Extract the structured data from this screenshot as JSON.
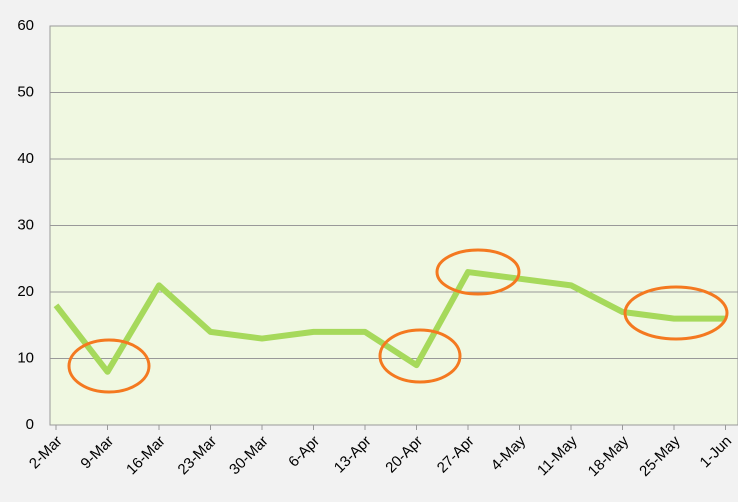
{
  "chart_data": {
    "type": "line",
    "categories": [
      "2-Mar",
      "9-Mar",
      "16-Mar",
      "23-Mar",
      "30-Mar",
      "6-Apr",
      "13-Apr",
      "20-Apr",
      "27-Apr",
      "4-May",
      "11-May",
      "18-May",
      "25-May",
      "1-Jun"
    ],
    "series": [
      {
        "color": "#a6d95b",
        "values": [
          18,
          8,
          21,
          14,
          13,
          14,
          14,
          9,
          23,
          22,
          21,
          17,
          16,
          16
        ]
      }
    ],
    "ylim": [
      0,
      60
    ],
    "yticks": [
      0,
      10,
      20,
      30,
      40,
      50,
      60
    ],
    "grid": true
  }
}
